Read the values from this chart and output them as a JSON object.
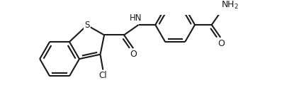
{
  "bg_color": "#ffffff",
  "line_color": "#1a1a1a",
  "line_width": 1.5,
  "figsize": [
    3.98,
    1.58
  ],
  "dpi": 100,
  "xlim": [
    0.0,
    10.0
  ],
  "ylim": [
    0.0,
    4.0
  ]
}
